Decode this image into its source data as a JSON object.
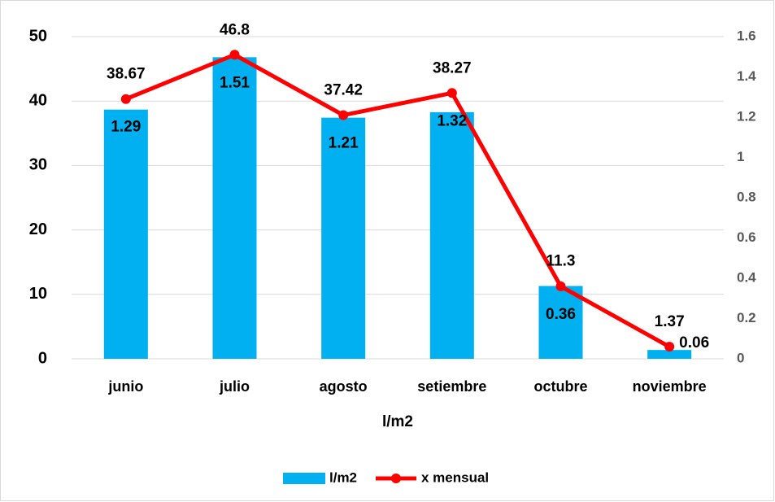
{
  "chart_data": {
    "type": "bar_line",
    "categories": [
      "junio",
      "julio",
      "agosto",
      "setiembre",
      "octubre",
      "noviembre"
    ],
    "xlabel": "l/m2",
    "series": [
      {
        "name": "l/m2",
        "type": "bar",
        "color": "#00b0f0",
        "values": [
          38.67,
          46.8,
          37.42,
          38.27,
          11.3,
          1.37
        ]
      },
      {
        "name": "x mensual",
        "type": "line",
        "axis": "y2",
        "color": "#ff0000",
        "values": [
          1.29,
          1.51,
          1.21,
          1.32,
          0.36,
          0.06
        ]
      }
    ],
    "ylim": [
      0,
      50
    ],
    "yticks": [
      0,
      10,
      20,
      30,
      40,
      50
    ],
    "y2lim": [
      0,
      1.6
    ],
    "y2ticks": [
      0,
      0.2,
      0.4,
      0.6,
      0.8,
      1,
      1.2,
      1.4,
      1.6
    ],
    "grid": true,
    "legend": "bottom"
  }
}
